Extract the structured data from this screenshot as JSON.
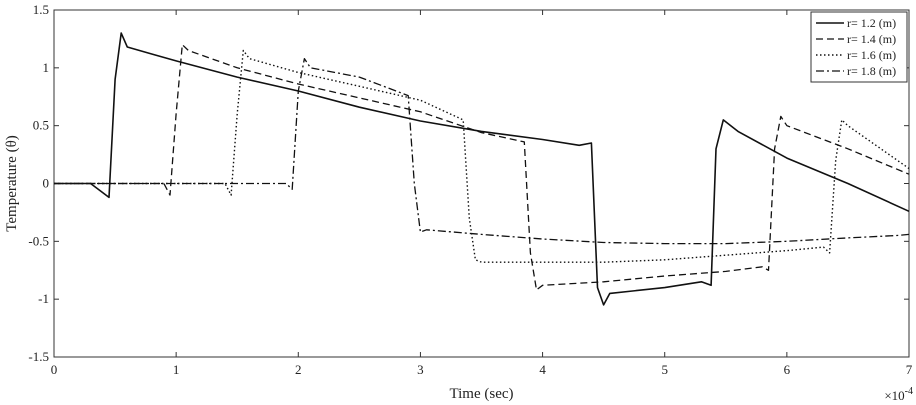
{
  "chart_data": {
    "type": "line",
    "title": "",
    "xlabel": "Time (sec)",
    "ylabel": "Temperature (θ)",
    "x_multiplier_label": "×10",
    "x_multiplier_exponent": "-4",
    "xlim": [
      0,
      7
    ],
    "ylim": [
      -1.5,
      1.5
    ],
    "xticks": [
      0,
      1,
      2,
      3,
      4,
      5,
      6,
      7
    ],
    "yticks": [
      -1.5,
      -1,
      -0.5,
      0,
      0.5,
      1,
      1.5
    ],
    "xtick_labels": [
      "0",
      "1",
      "2",
      "3",
      "4",
      "5",
      "6",
      "7"
    ],
    "ytick_labels": [
      "-1.5",
      "-1",
      "-0.5",
      "0",
      "0.5",
      "1",
      "1.5"
    ],
    "grid": false,
    "legend_position": "top-right",
    "series": [
      {
        "name": "r= 1.2 (m)",
        "style": "solid",
        "x": [
          0,
          0.3,
          0.45,
          0.5,
          0.55,
          0.6,
          0.8,
          1.0,
          1.5,
          2.0,
          2.5,
          3.0,
          3.5,
          4.0,
          4.3,
          4.4,
          4.45,
          4.5,
          4.55,
          5.0,
          5.3,
          5.38,
          5.42,
          5.48,
          5.6,
          6.0,
          6.5,
          7.0
        ],
        "values": [
          0,
          0,
          -0.12,
          0.9,
          1.3,
          1.18,
          1.12,
          1.06,
          0.92,
          0.8,
          0.66,
          0.54,
          0.45,
          0.38,
          0.33,
          0.35,
          -0.9,
          -1.05,
          -0.95,
          -0.9,
          -0.85,
          -0.88,
          0.3,
          0.55,
          0.45,
          0.22,
          0.0,
          -0.24
        ]
      },
      {
        "name": "r= 1.4 (m)",
        "style": "dashed",
        "x": [
          0,
          0.9,
          0.95,
          1.0,
          1.05,
          1.1,
          1.5,
          2.0,
          2.5,
          3.0,
          3.5,
          3.85,
          3.9,
          3.95,
          4.0,
          4.5,
          5.0,
          5.5,
          5.8,
          5.85,
          5.9,
          5.95,
          6.0,
          6.5,
          7.0
        ],
        "values": [
          0,
          0,
          -0.1,
          0.6,
          1.2,
          1.15,
          1.0,
          0.86,
          0.74,
          0.62,
          0.44,
          0.36,
          -0.6,
          -0.92,
          -0.88,
          -0.85,
          -0.8,
          -0.76,
          -0.72,
          -0.75,
          0.3,
          0.58,
          0.5,
          0.3,
          0.08
        ]
      },
      {
        "name": "r= 1.6 (m)",
        "style": "dotted",
        "x": [
          0,
          1.4,
          1.45,
          1.5,
          1.55,
          1.6,
          2.0,
          2.5,
          3.0,
          3.35,
          3.4,
          3.45,
          3.5,
          4.0,
          4.5,
          5.0,
          5.5,
          6.0,
          6.3,
          6.35,
          6.4,
          6.45,
          6.5,
          7.0
        ],
        "values": [
          0,
          0,
          -0.1,
          0.6,
          1.15,
          1.08,
          0.96,
          0.84,
          0.72,
          0.55,
          -0.3,
          -0.66,
          -0.68,
          -0.68,
          -0.68,
          -0.66,
          -0.62,
          -0.58,
          -0.55,
          -0.6,
          0.2,
          0.55,
          0.5,
          0.13
        ]
      },
      {
        "name": "r= 1.8 (m)",
        "style": "dashdot",
        "x": [
          0,
          1.9,
          1.95,
          2.0,
          2.05,
          2.1,
          2.5,
          2.9,
          2.95,
          3.0,
          3.05,
          3.5,
          4.0,
          4.5,
          5.0,
          5.5,
          6.0,
          6.5,
          6.9,
          7.0
        ],
        "values": [
          0,
          0,
          -0.05,
          0.8,
          1.08,
          1.0,
          0.92,
          0.76,
          0.0,
          -0.42,
          -0.4,
          -0.44,
          -0.48,
          -0.51,
          -0.52,
          -0.52,
          -0.5,
          -0.47,
          -0.45,
          -0.44
        ]
      }
    ]
  }
}
